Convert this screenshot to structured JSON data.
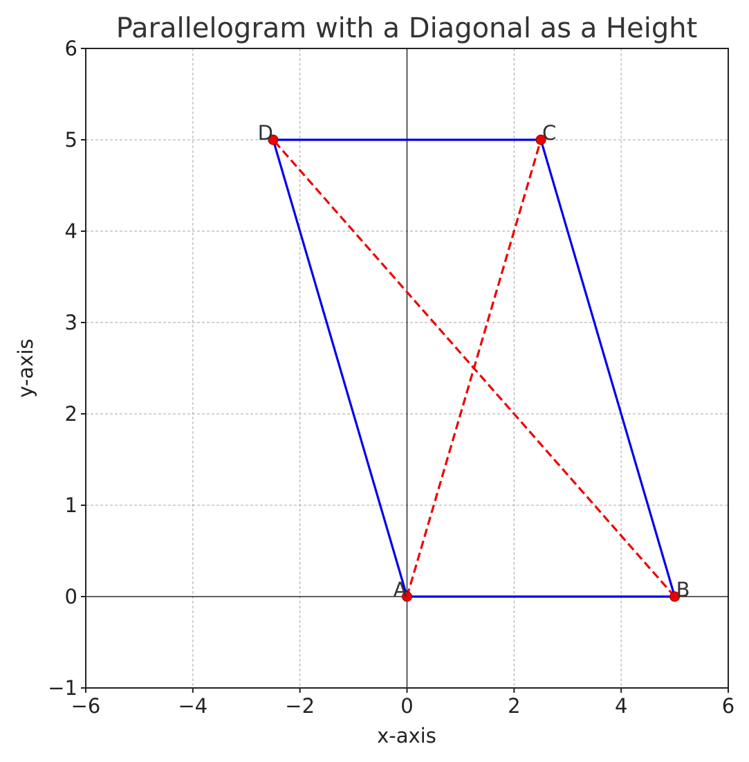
{
  "chart_data": {
    "type": "line",
    "title": "Parallelogram with a Diagonal as a Height",
    "xlabel": "x-axis",
    "ylabel": "y-axis",
    "xlim": [
      -6,
      6
    ],
    "ylim": [
      -1,
      6
    ],
    "xticks": [
      -6,
      -4,
      -2,
      0,
      2,
      4,
      6
    ],
    "yticks": [
      -1,
      0,
      1,
      2,
      3,
      4,
      5,
      6
    ],
    "xtick_labels": [
      "−6",
      "−4",
      "−2",
      "0",
      "2",
      "4",
      "6"
    ],
    "ytick_labels": [
      "−1",
      "0",
      "1",
      "2",
      "3",
      "4",
      "5",
      "6"
    ],
    "grid": true,
    "axis_lines_at_zero": true,
    "points": [
      {
        "label": "A",
        "x": 0,
        "y": 0
      },
      {
        "label": "B",
        "x": 5,
        "y": 0
      },
      {
        "label": "C",
        "x": 2.5,
        "y": 5
      },
      {
        "label": "D",
        "x": -2.5,
        "y": 5
      }
    ],
    "parallelogram": {
      "vertices": [
        "A",
        "B",
        "C",
        "D"
      ],
      "color": "#0000ee",
      "style": "solid"
    },
    "diagonals": [
      {
        "from": "A",
        "to": "C",
        "color": "#ee0000",
        "style": "dashed"
      },
      {
        "from": "B",
        "to": "D",
        "color": "#ee0000",
        "style": "dashed"
      }
    ],
    "point_color": "#ee0000"
  }
}
